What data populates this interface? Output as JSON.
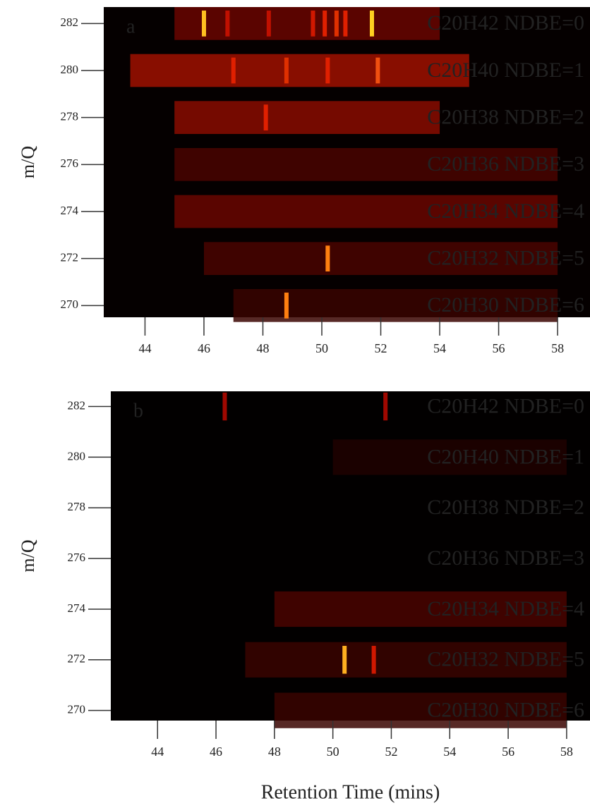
{
  "chart_data": [
    {
      "type": "heatmap",
      "panel_label": "a",
      "ylabel": "m/Q",
      "xlim": [
        42.6,
        59.1
      ],
      "ylim": [
        269.5,
        282.7
      ],
      "xticks": [
        44,
        46,
        48,
        50,
        52,
        54,
        56,
        58
      ],
      "yticks": [
        270,
        272,
        274,
        276,
        278,
        280,
        282
      ],
      "background": "#050000",
      "rows": [
        {
          "label": "C20H42 NDBE=0",
          "y": 282
        },
        {
          "label": "C20H40 NDBE=1",
          "y": 280
        },
        {
          "label": "C20H38 NDBE=2",
          "y": 278
        },
        {
          "label": "C20H36 NDBE=3",
          "y": 276
        },
        {
          "label": "C20H34 NDBE=4",
          "y": 274
        },
        {
          "label": "C20H32 NDBE=5",
          "y": 272
        },
        {
          "label": "C20H30 NDBE=6",
          "y": 270
        }
      ],
      "bands": [
        {
          "y": 282,
          "x": [
            45,
            54
          ],
          "color": "#6a0500"
        },
        {
          "y": 280,
          "x": [
            43.5,
            55
          ],
          "color": "#a01000"
        },
        {
          "y": 278,
          "x": [
            45,
            54
          ],
          "color": "#8a0c00"
        },
        {
          "y": 276,
          "x": [
            45,
            58
          ],
          "color": "#4a0400"
        },
        {
          "y": 274,
          "x": [
            45,
            58
          ],
          "color": "#6a0600"
        },
        {
          "y": 272,
          "x": [
            46,
            58
          ],
          "color": "#4a0400"
        },
        {
          "y": 270,
          "x": [
            47,
            58
          ],
          "color": "#3a0300"
        }
      ],
      "peaks": [
        {
          "x": 46,
          "y": 282,
          "color": "#ffc020"
        },
        {
          "x": 51.7,
          "y": 282,
          "color": "#ffd020"
        },
        {
          "x": 46.8,
          "y": 282,
          "color": "#c01000"
        },
        {
          "x": 48.2,
          "y": 282,
          "color": "#c01000"
        },
        {
          "x": 49.7,
          "y": 282,
          "color": "#d01800"
        },
        {
          "x": 50.1,
          "y": 282,
          "color": "#e02000"
        },
        {
          "x": 50.5,
          "y": 282,
          "color": "#e03000"
        },
        {
          "x": 50.8,
          "y": 282,
          "color": "#e02000"
        },
        {
          "x": 47,
          "y": 280,
          "color": "#e02000"
        },
        {
          "x": 48.8,
          "y": 280,
          "color": "#e03000"
        },
        {
          "x": 50.2,
          "y": 280,
          "color": "#e02000"
        },
        {
          "x": 51.9,
          "y": 280,
          "color": "#f05010"
        },
        {
          "x": 48.1,
          "y": 278,
          "color": "#e02000"
        },
        {
          "x": 50.2,
          "y": 272,
          "color": "#ff8010"
        },
        {
          "x": 48.8,
          "y": 270,
          "color": "#ff8010"
        }
      ]
    },
    {
      "type": "heatmap",
      "panel_label": "b",
      "ylabel": "m/Q",
      "xlabel": "Retention Time (mins)",
      "xlim": [
        42.4,
        58.8
      ],
      "ylim": [
        269.6,
        282.6
      ],
      "xticks": [
        44,
        46,
        48,
        50,
        52,
        54,
        56,
        58
      ],
      "yticks": [
        270,
        272,
        274,
        276,
        278,
        280,
        282
      ],
      "background": "#020000",
      "rows": [
        {
          "label": "C20H42 NDBE=0",
          "y": 282
        },
        {
          "label": "C20H40 NDBE=1",
          "y": 280
        },
        {
          "label": "C20H38 NDBE=2",
          "y": 278
        },
        {
          "label": "C20H36 NDBE=3",
          "y": 276
        },
        {
          "label": "C20H34 NDBE=4",
          "y": 274
        },
        {
          "label": "C20H32 NDBE=5",
          "y": 272
        },
        {
          "label": "C20H30 NDBE=6",
          "y": 270
        }
      ],
      "bands": [
        {
          "y": 280,
          "x": [
            50,
            58
          ],
          "color": "#200100"
        },
        {
          "y": 274,
          "x": [
            48,
            58
          ],
          "color": "#4a0400"
        },
        {
          "y": 272,
          "x": [
            47,
            58
          ],
          "color": "#3a0300"
        },
        {
          "y": 270,
          "x": [
            48,
            58
          ],
          "color": "#3a0300"
        }
      ],
      "peaks": [
        {
          "x": 46.3,
          "y": 282,
          "color": "#a00800"
        },
        {
          "x": 51.8,
          "y": 282,
          "color": "#a00800"
        },
        {
          "x": 50.4,
          "y": 272,
          "color": "#ffb020"
        },
        {
          "x": 51.4,
          "y": 272,
          "color": "#d01800"
        }
      ]
    }
  ]
}
